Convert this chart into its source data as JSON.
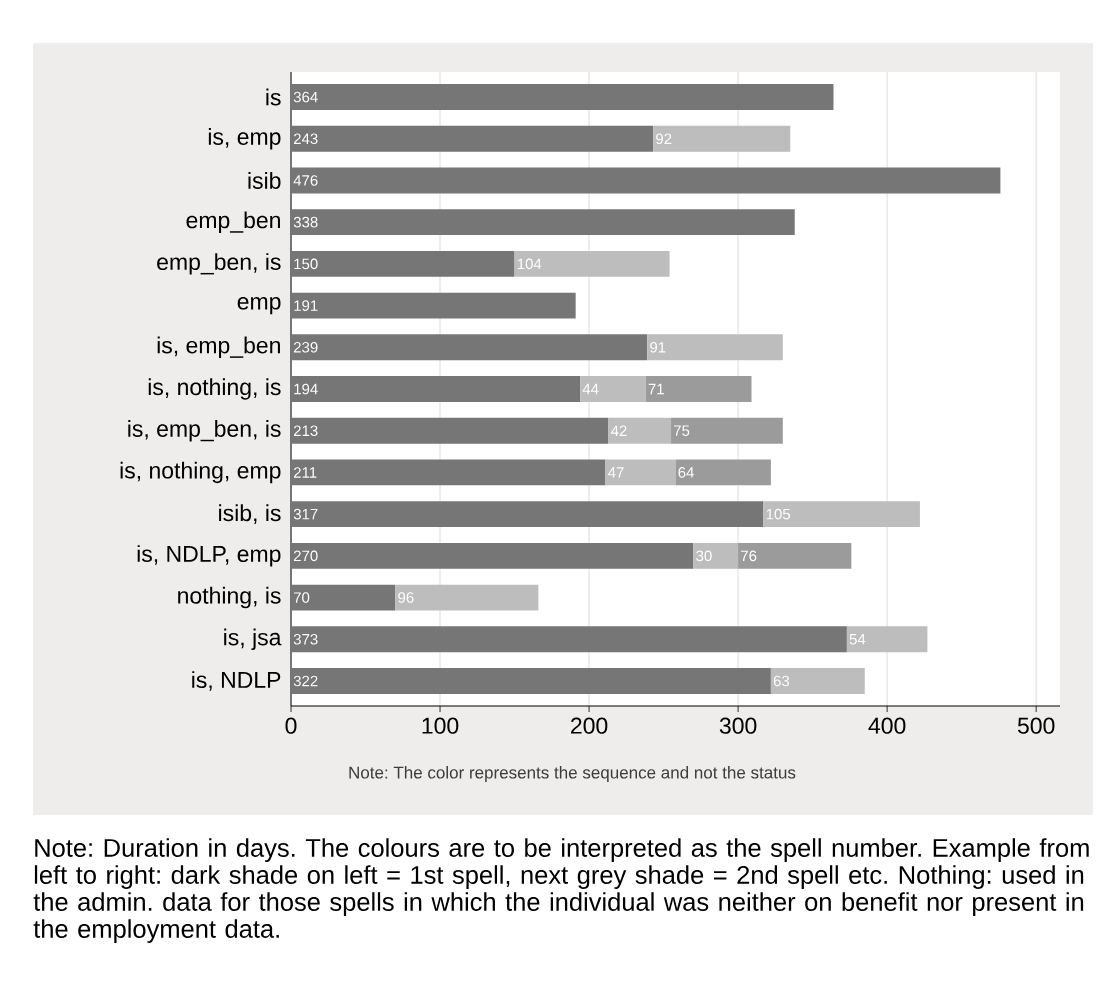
{
  "chart_data": {
    "type": "bar",
    "orientation": "horizontal",
    "stacked": true,
    "categories": [
      "is",
      "is, emp",
      "isib",
      "emp_ben",
      "emp_ben, is",
      "emp",
      "is, emp_ben",
      "is, nothing, is",
      "is, emp_ben, is",
      "is, nothing, emp",
      "isib, is",
      "is, NDLP, emp",
      "nothing, is",
      "is, jsa",
      "is, NDLP"
    ],
    "series": [
      {
        "color": "#767676",
        "values": [
          364,
          243,
          476,
          338,
          150,
          191,
          239,
          194,
          213,
          211,
          317,
          270,
          70,
          373,
          322
        ]
      },
      {
        "color": "#bdbdbd",
        "values": [
          null,
          92,
          null,
          null,
          104,
          null,
          91,
          44,
          42,
          47,
          105,
          30,
          96,
          54,
          63
        ]
      },
      {
        "color": "#9b9b9b",
        "values": [
          null,
          null,
          null,
          null,
          null,
          null,
          null,
          71,
          75,
          64,
          null,
          76,
          null,
          null,
          null
        ]
      }
    ],
    "xlim": [
      0,
      516
    ],
    "xticks": [
      0,
      100,
      200,
      300,
      400,
      500
    ],
    "grid": "x",
    "data_labels": true,
    "annotations": [
      "Note: The color represents the sequence and not the status",
      "Note: Duration in days. The colours are to be interpreted as the spell number. Example from left to right: dark shade on left = 1st spell, next grey shade = 2nd spell etc. Nothing: used in the admin. data for those spells in which the individual was neither on benefit nor present in the employment data."
    ]
  }
}
